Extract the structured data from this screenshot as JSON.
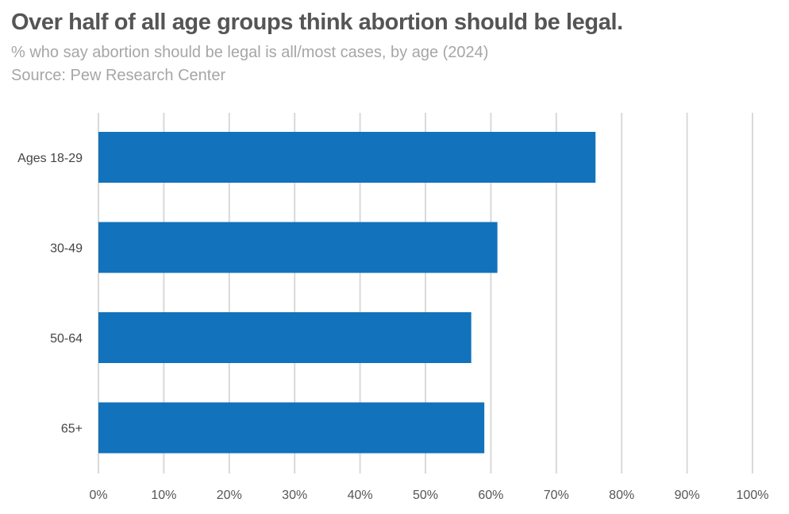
{
  "chart_data": {
    "type": "bar",
    "orientation": "horizontal",
    "title": "Over half of all age groups think abortion should be legal.",
    "subtitle": "% who say abortion should be legal is all/most cases, by age (2024)",
    "source": "Source: Pew Research Center",
    "categories": [
      "Ages 18-29",
      "30-49",
      "50-64",
      "65+"
    ],
    "values": [
      76,
      61,
      57,
      59
    ],
    "xlim": [
      0,
      100
    ],
    "x_ticks": [
      "0%",
      "10%",
      "20%",
      "30%",
      "40%",
      "50%",
      "60%",
      "70%",
      "80%",
      "90%",
      "100%"
    ],
    "grid": true,
    "bar_color": "#1272bb",
    "grid_color": "#d9d9d9"
  }
}
